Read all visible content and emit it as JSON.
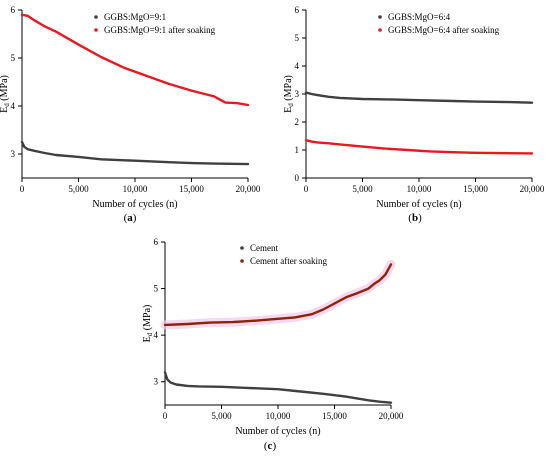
{
  "chart_data": [
    {
      "type": "line",
      "panel_label": "(a)",
      "xlabel": "Number of cycles (n)",
      "ylabel_main": "E",
      "ylabel_sub": "d",
      "ylabel_unit": " (MPa)",
      "xlim": [
        0,
        20000
      ],
      "ylim": [
        2.5,
        6
      ],
      "xticks": [
        0,
        5000,
        10000,
        15000,
        20000
      ],
      "xtick_labels": [
        "0",
        "5,000",
        "10,000",
        "15,000",
        "20,000"
      ],
      "yticks": [
        3,
        4,
        5,
        6
      ],
      "ytick_labels": [
        "3",
        "4",
        "5",
        "6"
      ],
      "grid": false,
      "legend_position": "top-right",
      "series": [
        {
          "name": "GGBS:MgO=9:1",
          "color": "#404040",
          "x": [
            0,
            200,
            500,
            1000,
            2000,
            3000,
            5000,
            7000,
            10000,
            13000,
            15000,
            17000,
            20000
          ],
          "y": [
            3.25,
            3.15,
            3.1,
            3.07,
            3.02,
            2.98,
            2.94,
            2.89,
            2.86,
            2.83,
            2.81,
            2.8,
            2.79
          ]
        },
        {
          "name": "GGBS:MgO=9:1 after soaking",
          "color": "#e8191e",
          "x": [
            0,
            500,
            1000,
            2000,
            3000,
            5000,
            7000,
            9000,
            11000,
            13000,
            15000,
            17000,
            18000,
            19000,
            20000
          ],
          "y": [
            5.9,
            5.88,
            5.8,
            5.66,
            5.55,
            5.28,
            5.02,
            4.8,
            4.63,
            4.46,
            4.32,
            4.2,
            4.07,
            4.06,
            4.02
          ]
        }
      ]
    },
    {
      "type": "line",
      "panel_label": "(b)",
      "xlabel": "Number of cycles (n)",
      "ylabel_main": "E",
      "ylabel_sub": "d",
      "ylabel_unit": " (MPa)",
      "xlim": [
        0,
        20000
      ],
      "ylim": [
        0,
        6
      ],
      "xticks": [
        0,
        5000,
        10000,
        15000,
        20000
      ],
      "xtick_labels": [
        "0",
        "5,000",
        "10,000",
        "15,000",
        "20,000"
      ],
      "yticks": [
        0,
        1,
        2,
        3,
        4,
        5,
        6
      ],
      "ytick_labels": [
        "0",
        "1",
        "2",
        "3",
        "4",
        "5",
        "6"
      ],
      "grid": false,
      "legend_position": "top-right",
      "series": [
        {
          "name": "GGBS:MgO=6:4",
          "color": "#404040",
          "x": [
            0,
            500,
            1000,
            2000,
            3000,
            5000,
            8000,
            10000,
            13000,
            15000,
            18000,
            20000
          ],
          "y": [
            3.05,
            3.0,
            2.96,
            2.9,
            2.86,
            2.82,
            2.8,
            2.78,
            2.75,
            2.73,
            2.71,
            2.69
          ]
        },
        {
          "name": "GGBS:MgO=6:4 after soaking",
          "color": "#e8191e",
          "x": [
            0,
            500,
            1000,
            2000,
            3000,
            5000,
            7000,
            9000,
            11000,
            13000,
            15000,
            17000,
            20000
          ],
          "y": [
            1.35,
            1.3,
            1.27,
            1.24,
            1.2,
            1.12,
            1.05,
            1.0,
            0.95,
            0.92,
            0.9,
            0.89,
            0.88
          ]
        }
      ]
    },
    {
      "type": "line",
      "panel_label": "(c)",
      "xlabel": "Number of cycles (n)",
      "ylabel_main": "E",
      "ylabel_sub": "d",
      "ylabel_unit": " (MPa)",
      "xlim": [
        0,
        20000
      ],
      "ylim": [
        2.5,
        6
      ],
      "xticks": [
        0,
        5000,
        10000,
        15000,
        20000
      ],
      "xtick_labels": [
        "0",
        "5,000",
        "10,000",
        "15,000",
        "20,000"
      ],
      "yticks": [
        3,
        4,
        5,
        6
      ],
      "ytick_labels": [
        "3",
        "4",
        "5",
        "6"
      ],
      "grid": false,
      "legend_position": "top-right",
      "series": [
        {
          "name": "Cement",
          "color": "#404040",
          "x": [
            0,
            200,
            500,
            1000,
            2000,
            3000,
            5000,
            7000,
            10000,
            12000,
            14000,
            16000,
            18000,
            19000,
            20000
          ],
          "y": [
            3.2,
            3.05,
            2.98,
            2.94,
            2.91,
            2.9,
            2.89,
            2.87,
            2.84,
            2.79,
            2.74,
            2.68,
            2.6,
            2.57,
            2.55
          ]
        },
        {
          "name": "Cement after soaking",
          "color": "#8b2500",
          "x": [
            0,
            2000,
            4000,
            6000,
            8000,
            10000,
            11500,
            13000,
            14000,
            15000,
            16000,
            17000,
            18000,
            18500,
            19000,
            19500,
            20000
          ],
          "y": [
            4.22,
            4.24,
            4.27,
            4.28,
            4.31,
            4.35,
            4.38,
            4.45,
            4.55,
            4.68,
            4.81,
            4.9,
            5.0,
            5.1,
            5.18,
            5.3,
            5.52
          ]
        }
      ]
    }
  ]
}
